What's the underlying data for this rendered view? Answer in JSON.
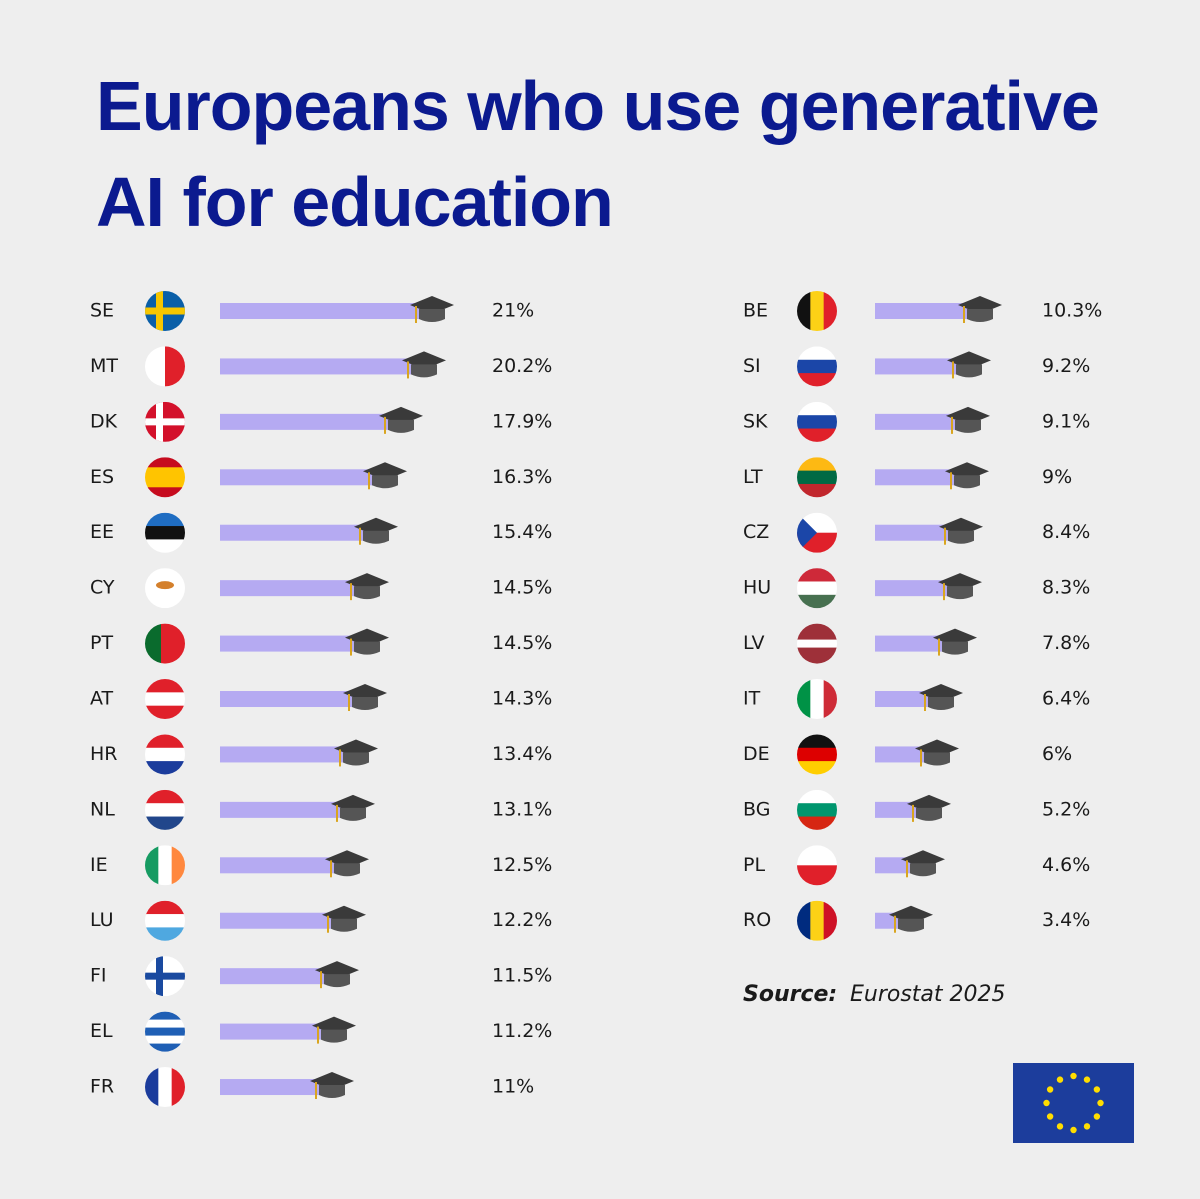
{
  "chart_data": {
    "type": "bar",
    "title": "Europeans who use generative AI for education",
    "categories": [
      "SE",
      "MT",
      "DK",
      "ES",
      "EE",
      "CY",
      "PT",
      "AT",
      "HR",
      "NL",
      "IE",
      "LU",
      "FI",
      "EL",
      "FR",
      "BE",
      "SI",
      "SK",
      "LT",
      "CZ",
      "HU",
      "LV",
      "IT",
      "DE",
      "BG",
      "PL",
      "RO"
    ],
    "values": [
      21,
      20.2,
      17.9,
      16.3,
      15.4,
      14.5,
      14.5,
      14.3,
      13.4,
      13.1,
      12.5,
      12.2,
      11.5,
      11.2,
      11,
      10.3,
      9.2,
      9.1,
      9,
      8.4,
      8.3,
      7.8,
      6.4,
      6,
      5.2,
      4.6,
      3.4
    ],
    "value_labels": [
      "21%",
      "20.2%",
      "17.9%",
      "16.3%",
      "15.4%",
      "14.5%",
      "14.5%",
      "14.3%",
      "13.4%",
      "13.1%",
      "12.5%",
      "12.2%",
      "11.5%",
      "11.2%",
      "11%",
      "10.3%",
      "9.2%",
      "9.1%",
      "9%",
      "8.4%",
      "8.3%",
      "7.8%",
      "6.4%",
      "6%",
      "5.2%",
      "4.6%",
      "3.4%"
    ],
    "color": "#b5aaf2",
    "source_label": "Source:",
    "source": "Eurostat 2025"
  }
}
